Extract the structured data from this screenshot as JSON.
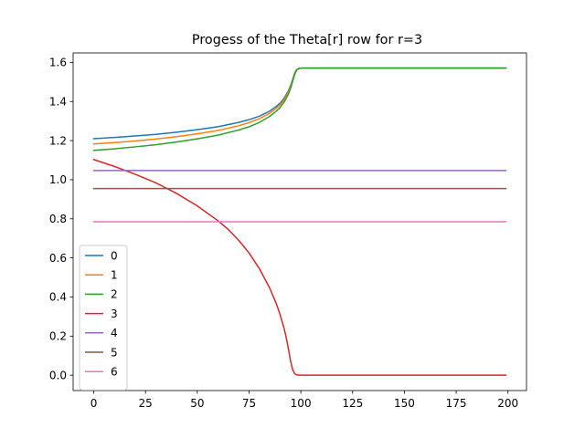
{
  "chart_data": {
    "type": "line",
    "title": "Progess of the Theta[r] row for r=3",
    "xlabel": "",
    "ylabel": "",
    "xlim": [
      -9.95,
      208.95
    ],
    "ylim": [
      -0.0785,
      1.6485
    ],
    "xticks": [
      0,
      25,
      50,
      75,
      100,
      125,
      150,
      175,
      200
    ],
    "xtick_labels": [
      "0",
      "25",
      "50",
      "75",
      "100",
      "125",
      "150",
      "175",
      "200"
    ],
    "yticks": [
      0.0,
      0.2,
      0.4,
      0.6,
      0.8,
      1.0,
      1.2,
      1.4,
      1.6
    ],
    "ytick_labels": [
      "0.0",
      "0.2",
      "0.4",
      "0.6",
      "0.8",
      "1.0",
      "1.2",
      "1.4",
      "1.6"
    ],
    "grid": false,
    "legend_position": "lower-left",
    "series": [
      {
        "name": "0",
        "color": "#1f77b4",
        "x": [
          0,
          10,
          20,
          30,
          40,
          50,
          60,
          70,
          75,
          80,
          85,
          88,
          90,
          92,
          94,
          95,
          96,
          97,
          98,
          99,
          100,
          102,
          110,
          125,
          150,
          175,
          199
        ],
        "y": [
          1.21,
          1.216,
          1.224,
          1.232,
          1.243,
          1.256,
          1.271,
          1.293,
          1.307,
          1.325,
          1.351,
          1.374,
          1.392,
          1.418,
          1.455,
          1.48,
          1.512,
          1.545,
          1.564,
          1.569,
          1.5708,
          1.5708,
          1.5708,
          1.5708,
          1.5708,
          1.5708,
          1.5708
        ]
      },
      {
        "name": "1",
        "color": "#ff7f0e",
        "x": [
          0,
          10,
          20,
          30,
          40,
          50,
          60,
          70,
          75,
          80,
          85,
          88,
          90,
          92,
          94,
          95,
          96,
          97,
          98,
          99,
          100,
          102,
          110,
          125,
          150,
          175,
          199
        ],
        "y": [
          1.183,
          1.19,
          1.198,
          1.208,
          1.22,
          1.235,
          1.252,
          1.276,
          1.292,
          1.312,
          1.34,
          1.364,
          1.383,
          1.41,
          1.448,
          1.474,
          1.508,
          1.542,
          1.563,
          1.569,
          1.5708,
          1.5708,
          1.5708,
          1.5708,
          1.5708,
          1.5708,
          1.5708
        ]
      },
      {
        "name": "2",
        "color": "#2ca02c",
        "x": [
          0,
          10,
          20,
          30,
          40,
          50,
          60,
          70,
          75,
          80,
          85,
          88,
          90,
          92,
          94,
          95,
          96,
          97,
          98,
          99,
          100,
          102,
          110,
          125,
          150,
          175,
          199
        ],
        "y": [
          1.15,
          1.158,
          1.168,
          1.179,
          1.193,
          1.209,
          1.228,
          1.254,
          1.271,
          1.293,
          1.324,
          1.349,
          1.37,
          1.398,
          1.438,
          1.466,
          1.501,
          1.538,
          1.561,
          1.568,
          1.5708,
          1.5708,
          1.5708,
          1.5708,
          1.5708,
          1.5708,
          1.5708
        ]
      },
      {
        "name": "3",
        "color": "#d62728",
        "x": [
          0,
          10,
          20,
          30,
          40,
          50,
          60,
          65,
          70,
          75,
          80,
          85,
          88,
          90,
          92,
          93,
          94,
          95,
          96,
          97,
          98,
          99,
          100,
          102,
          110,
          125,
          150,
          175,
          199
        ],
        "y": [
          1.103,
          1.068,
          1.028,
          0.984,
          0.93,
          0.866,
          0.79,
          0.745,
          0.69,
          0.625,
          0.545,
          0.445,
          0.37,
          0.31,
          0.235,
          0.19,
          0.135,
          0.075,
          0.03,
          0.008,
          0.002,
          0.0005,
          0.0,
          0.0,
          0.0,
          0.0,
          0.0,
          0.0,
          0.0
        ]
      },
      {
        "name": "4",
        "color": "#9467bd",
        "x": [
          0,
          199
        ],
        "y": [
          1.047,
          1.047
        ]
      },
      {
        "name": "5",
        "color": "#8c564b",
        "x": [
          0,
          199
        ],
        "y": [
          0.955,
          0.955
        ]
      },
      {
        "name": "6",
        "color": "#e377c2",
        "x": [
          0,
          199
        ],
        "y": [
          0.785,
          0.785
        ]
      }
    ]
  }
}
